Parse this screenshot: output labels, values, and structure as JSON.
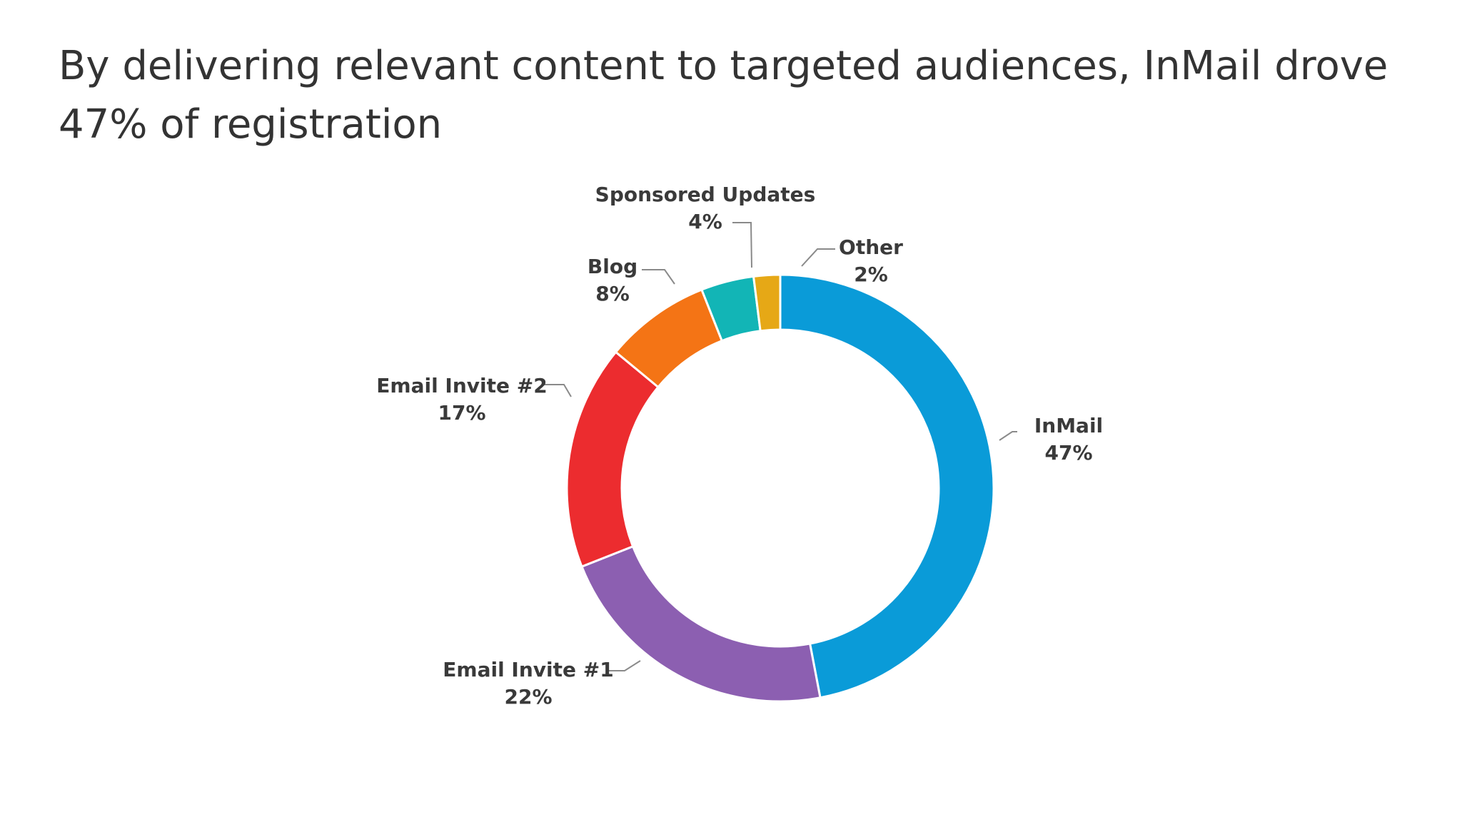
{
  "title": "By delivering relevant content to targeted audiences, InMail drove 47% of registration",
  "chart_data": {
    "type": "pie",
    "style": "donut",
    "title": "",
    "start_angle_deg": 0,
    "direction": "clockwise",
    "slices": [
      {
        "name": "InMail",
        "label": "InMail",
        "pct_label": "47%",
        "value": 47,
        "color": "#0a9bd8"
      },
      {
        "name": "Email Invite #1",
        "label": "Email Invite #1",
        "pct_label": "22%",
        "value": 22,
        "color": "#8c5fb1"
      },
      {
        "name": "Email Invite #2",
        "label": "Email Invite #2",
        "pct_label": "17%",
        "value": 17,
        "color": "#ec2c2f"
      },
      {
        "name": "Blog",
        "label": "Blog",
        "pct_label": "8%",
        "value": 8,
        "color": "#f47415"
      },
      {
        "name": "Sponsored Updates",
        "label": "Sponsored Updates",
        "pct_label": "4%",
        "value": 4,
        "color": "#12b5b6"
      },
      {
        "name": "Other",
        "label": "Other",
        "pct_label": "2%",
        "value": 2,
        "color": "#e6a816"
      }
    ]
  }
}
